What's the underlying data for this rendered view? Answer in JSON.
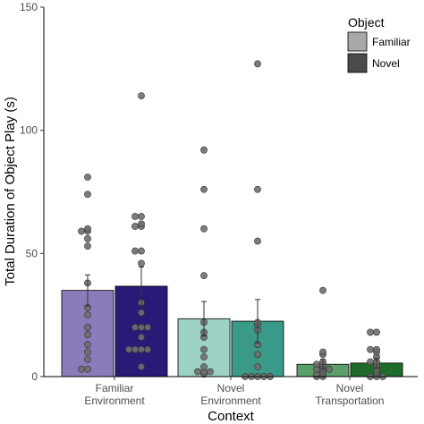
{
  "chart_data": {
    "type": "bar",
    "title": "",
    "xlabel": "Context",
    "ylabel": "Total Duration of Object Play (s)",
    "ylim": [
      0,
      150
    ],
    "yticks": [
      0,
      50,
      100,
      150
    ],
    "categories": [
      {
        "line1": "Familiar",
        "line2": "Environment"
      },
      {
        "line1": "Novel",
        "line2": "Environment"
      },
      {
        "line1": "Novel",
        "line2": "Transportation"
      }
    ],
    "legend": {
      "title": "Object",
      "position": "top-right",
      "entries": [
        {
          "label": "Familiar",
          "color": "#a8a8a8"
        },
        {
          "label": "Novel",
          "color": "#4a4a4a"
        }
      ]
    },
    "series": [
      {
        "name": "Familiar",
        "values": [
          35,
          23.5,
          5
        ],
        "errors": [
          6.3,
          7.0,
          2.0
        ],
        "colors": [
          "#8a7cbb",
          "#9ed1c6",
          "#5c9f6a"
        ]
      },
      {
        "name": "Novel",
        "values": [
          36.7,
          22.5,
          5.5
        ],
        "errors": [
          7.8,
          8.8,
          2.0
        ],
        "colors": [
          "#2a1a78",
          "#3a9987",
          "#1f6b2a"
        ]
      }
    ],
    "points": [
      [
        [
          3,
          3,
          7,
          10,
          13,
          17,
          20,
          25,
          28,
          38,
          53,
          56,
          59,
          59,
          60,
          74,
          81
        ],
        [
          4,
          11,
          11,
          11,
          11,
          16,
          20,
          20,
          20,
          26,
          30,
          46,
          51,
          51,
          61,
          61,
          62,
          65,
          65,
          114
        ]
      ],
      [
        [
          1,
          2,
          2,
          2,
          4,
          8,
          11,
          16,
          18,
          22,
          41,
          60,
          76,
          92
        ],
        [
          0,
          0,
          0,
          0,
          0,
          4,
          9,
          13,
          19,
          21,
          22,
          55,
          76,
          127
        ]
      ],
      [
        [
          0,
          0,
          1,
          1,
          2,
          3,
          3,
          3,
          4,
          5,
          5,
          6,
          9,
          10,
          35
        ],
        [
          0,
          0,
          0,
          2,
          3,
          4,
          5,
          6,
          6,
          8,
          10,
          11,
          11,
          18,
          18
        ]
      ]
    ],
    "grid": false,
    "point_color": "#6e6e6e"
  }
}
